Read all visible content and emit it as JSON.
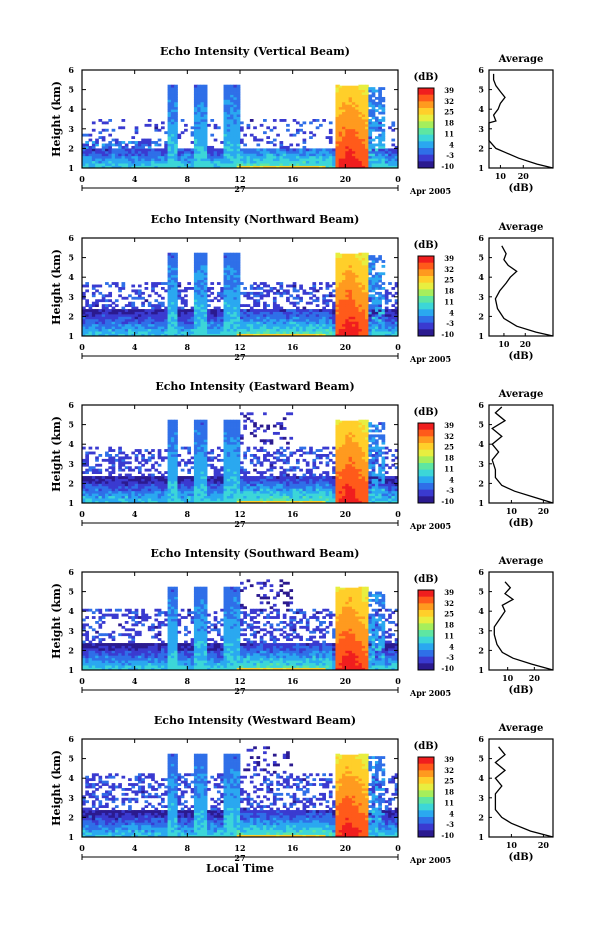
{
  "common": {
    "date_label": "Apr 2005",
    "day_label": "27",
    "colorbar_unit": "(dB)",
    "colorbar_ticks": [
      "39",
      "32",
      "25",
      "18",
      "11",
      "4",
      "-3",
      "-10"
    ],
    "colormap": [
      "#2b1a8f",
      "#3a3ad0",
      "#2f6fe8",
      "#2aa8f0",
      "#3cd6d8",
      "#5ee6a2",
      "#a6ee5c",
      "#e8ee40",
      "#ffcf2a",
      "#ff9a1f",
      "#ff5a1a",
      "#f01e1e"
    ],
    "xlabel": "Local Time",
    "avg_title": "Average",
    "avg_xlabel": "(dB)"
  },
  "panels": [
    {
      "title": "Echo Intensity (Vertical Beam)",
      "ylabel": "Height (km)"
    },
    {
      "title": "Echo Intensity (Northward Beam)",
      "ylabel": "Height (km)"
    },
    {
      "title": "Echo Intensity (Eastward Beam)",
      "ylabel": "Height (km)"
    },
    {
      "title": "Echo Intensity (Southward Beam)",
      "ylabel": "Height (km)"
    },
    {
      "title": "Echo Intensity (Westward Beam)",
      "ylabel": "Height (km)"
    }
  ],
  "chart_data": [
    {
      "type": "heatmap",
      "title": "Echo Intensity (Vertical Beam)",
      "xlabel": "",
      "ylabel": "Height (km)",
      "x_ticks": [
        "0",
        "4",
        "8",
        "12",
        "16",
        "20",
        "0"
      ],
      "y_ticks": [
        "1",
        "2",
        "3",
        "4",
        "5",
        "6"
      ],
      "xlim": [
        0,
        24
      ],
      "ylim": [
        1,
        6
      ],
      "zlim": [
        -10,
        39
      ],
      "z_unit": "dB",
      "avg_profile": {
        "title": "Average",
        "xlabel": "(dB)",
        "x_ticks": [
          "10",
          "20"
        ],
        "xlim": [
          5,
          33
        ],
        "points": [
          [
            33,
            1
          ],
          [
            26,
            1.2
          ],
          [
            18,
            1.5
          ],
          [
            12,
            1.8
          ],
          [
            8,
            2
          ],
          [
            5,
            2.4
          ],
          [
            5,
            3
          ],
          [
            5,
            3.3
          ],
          [
            8,
            3.4
          ],
          [
            7,
            3.7
          ],
          [
            9,
            4
          ],
          [
            10,
            4.3
          ],
          [
            12,
            4.6
          ],
          [
            10,
            4.9
          ],
          [
            8,
            5.2
          ],
          [
            7,
            5.5
          ],
          [
            7,
            5.8
          ]
        ]
      }
    },
    {
      "type": "heatmap",
      "title": "Echo Intensity (Northward Beam)",
      "xlabel": "",
      "ylabel": "Height (km)",
      "x_ticks": [
        "0",
        "4",
        "8",
        "12",
        "16",
        "20",
        "0"
      ],
      "y_ticks": [
        "1",
        "2",
        "3",
        "4",
        "5",
        "6"
      ],
      "xlim": [
        0,
        24
      ],
      "ylim": [
        1,
        6
      ],
      "zlim": [
        -10,
        39
      ],
      "z_unit": "dB",
      "avg_profile": {
        "title": "Average",
        "xlabel": "(dB)",
        "x_ticks": [
          "10",
          "20"
        ],
        "xlim": [
          3,
          33
        ],
        "points": [
          [
            33,
            1
          ],
          [
            25,
            1.2
          ],
          [
            16,
            1.5
          ],
          [
            10,
            1.9
          ],
          [
            7,
            2.4
          ],
          [
            6,
            2.9
          ],
          [
            8,
            3.3
          ],
          [
            11,
            3.7
          ],
          [
            13,
            4
          ],
          [
            16,
            4.3
          ],
          [
            12,
            4.6
          ],
          [
            10,
            4.9
          ],
          [
            11,
            5.2
          ],
          [
            9,
            5.6
          ]
        ]
      }
    },
    {
      "type": "heatmap",
      "title": "Echo Intensity (Eastward Beam)",
      "xlabel": "",
      "ylabel": "Height (km)",
      "x_ticks": [
        "0",
        "4",
        "8",
        "12",
        "16",
        "20",
        "0"
      ],
      "y_ticks": [
        "1",
        "2",
        "3",
        "4",
        "5",
        "6"
      ],
      "xlim": [
        0,
        24
      ],
      "ylim": [
        1,
        6
      ],
      "zlim": [
        -10,
        39
      ],
      "z_unit": "dB",
      "avg_profile": {
        "title": "Average",
        "xlabel": "(dB)",
        "x_ticks": [
          "10",
          "20"
        ],
        "xlim": [
          3,
          23
        ],
        "points": [
          [
            23,
            1
          ],
          [
            17,
            1.3
          ],
          [
            11,
            1.6
          ],
          [
            7,
            1.9
          ],
          [
            5,
            2.3
          ],
          [
            5,
            2.7
          ],
          [
            4,
            3.2
          ],
          [
            6,
            3.6
          ],
          [
            4,
            4
          ],
          [
            7,
            4.4
          ],
          [
            4,
            4.8
          ],
          [
            8,
            5.2
          ],
          [
            5,
            5.6
          ],
          [
            7,
            5.9
          ]
        ]
      }
    },
    {
      "type": "heatmap",
      "title": "Echo Intensity (Southward Beam)",
      "xlabel": "",
      "ylabel": "Height (km)",
      "x_ticks": [
        "0",
        "4",
        "8",
        "12",
        "16",
        "20",
        "0"
      ],
      "y_ticks": [
        "1",
        "2",
        "3",
        "4",
        "5",
        "6"
      ],
      "xlim": [
        0,
        24
      ],
      "ylim": [
        1,
        6
      ],
      "zlim": [
        -10,
        39
      ],
      "z_unit": "dB",
      "avg_profile": {
        "title": "Average",
        "xlabel": "(dB)",
        "x_ticks": [
          "10",
          "20"
        ],
        "xlim": [
          3,
          27
        ],
        "points": [
          [
            27,
            1
          ],
          [
            19,
            1.3
          ],
          [
            12,
            1.6
          ],
          [
            8,
            1.9
          ],
          [
            6,
            2.3
          ],
          [
            5,
            2.8
          ],
          [
            5,
            3.2
          ],
          [
            7,
            3.6
          ],
          [
            9,
            4
          ],
          [
            8,
            4.3
          ],
          [
            12,
            4.6
          ],
          [
            9,
            4.9
          ],
          [
            11,
            5.2
          ],
          [
            9,
            5.5
          ]
        ]
      }
    },
    {
      "type": "heatmap",
      "title": "Echo Intensity (Westward Beam)",
      "xlabel": "Local Time",
      "ylabel": "Height (km)",
      "x_ticks": [
        "0",
        "4",
        "8",
        "12",
        "16",
        "20",
        "0"
      ],
      "y_ticks": [
        "1",
        "2",
        "3",
        "4",
        "5",
        "6"
      ],
      "xlim": [
        0,
        24
      ],
      "ylim": [
        1,
        6
      ],
      "zlim": [
        -10,
        39
      ],
      "z_unit": "dB",
      "avg_profile": {
        "title": "Average",
        "xlabel": "(dB)",
        "x_ticks": [
          "10",
          "20"
        ],
        "xlim": [
          3,
          23
        ],
        "points": [
          [
            23,
            1
          ],
          [
            16,
            1.3
          ],
          [
            10,
            1.7
          ],
          [
            7,
            2
          ],
          [
            5,
            2.4
          ],
          [
            5,
            2.8
          ],
          [
            5,
            3.2
          ],
          [
            7,
            3.6
          ],
          [
            5,
            4
          ],
          [
            8,
            4.4
          ],
          [
            5,
            4.8
          ],
          [
            8,
            5.2
          ],
          [
            6,
            5.6
          ]
        ]
      }
    }
  ]
}
